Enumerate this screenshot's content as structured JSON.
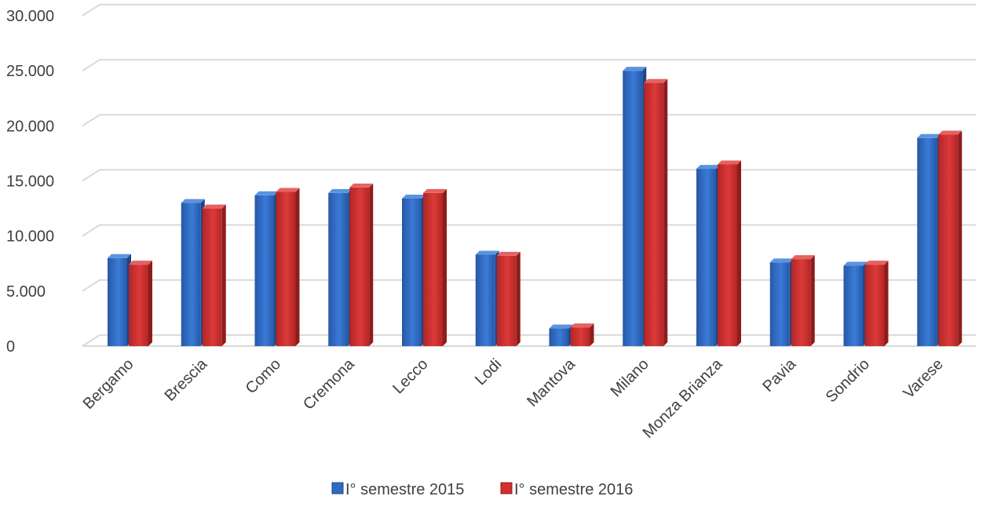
{
  "chart_data": {
    "type": "bar",
    "title": "",
    "xlabel": "",
    "ylabel": "",
    "categories": [
      "Bergamo",
      "Brescia",
      "Como",
      "Cremona",
      "Lecco",
      "Lodi",
      "Mantova",
      "Milano",
      "Monza Brianza",
      "Pavia",
      "Sondrio",
      "Varese"
    ],
    "series": [
      {
        "name": "I° semestre 2015",
        "color": "#2E6BC6",
        "values": [
          8000,
          13000,
          13700,
          13900,
          13400,
          8300,
          1600,
          25000,
          16100,
          7600,
          7300,
          18900
        ]
      },
      {
        "name": "I° semestre 2016",
        "color": "#D03030",
        "values": [
          7400,
          12500,
          14000,
          14400,
          13900,
          8200,
          1700,
          23900,
          16500,
          7900,
          7400,
          19200
        ]
      }
    ],
    "ylim": [
      0,
      30000
    ],
    "yticks": [
      0,
      5000,
      10000,
      15000,
      20000,
      25000,
      30000
    ],
    "ytick_labels": [
      "0",
      "5.000",
      "10.000",
      "15.000",
      "20.000",
      "25.000",
      "30.000"
    ],
    "grid": true,
    "legend_position": "bottom"
  }
}
